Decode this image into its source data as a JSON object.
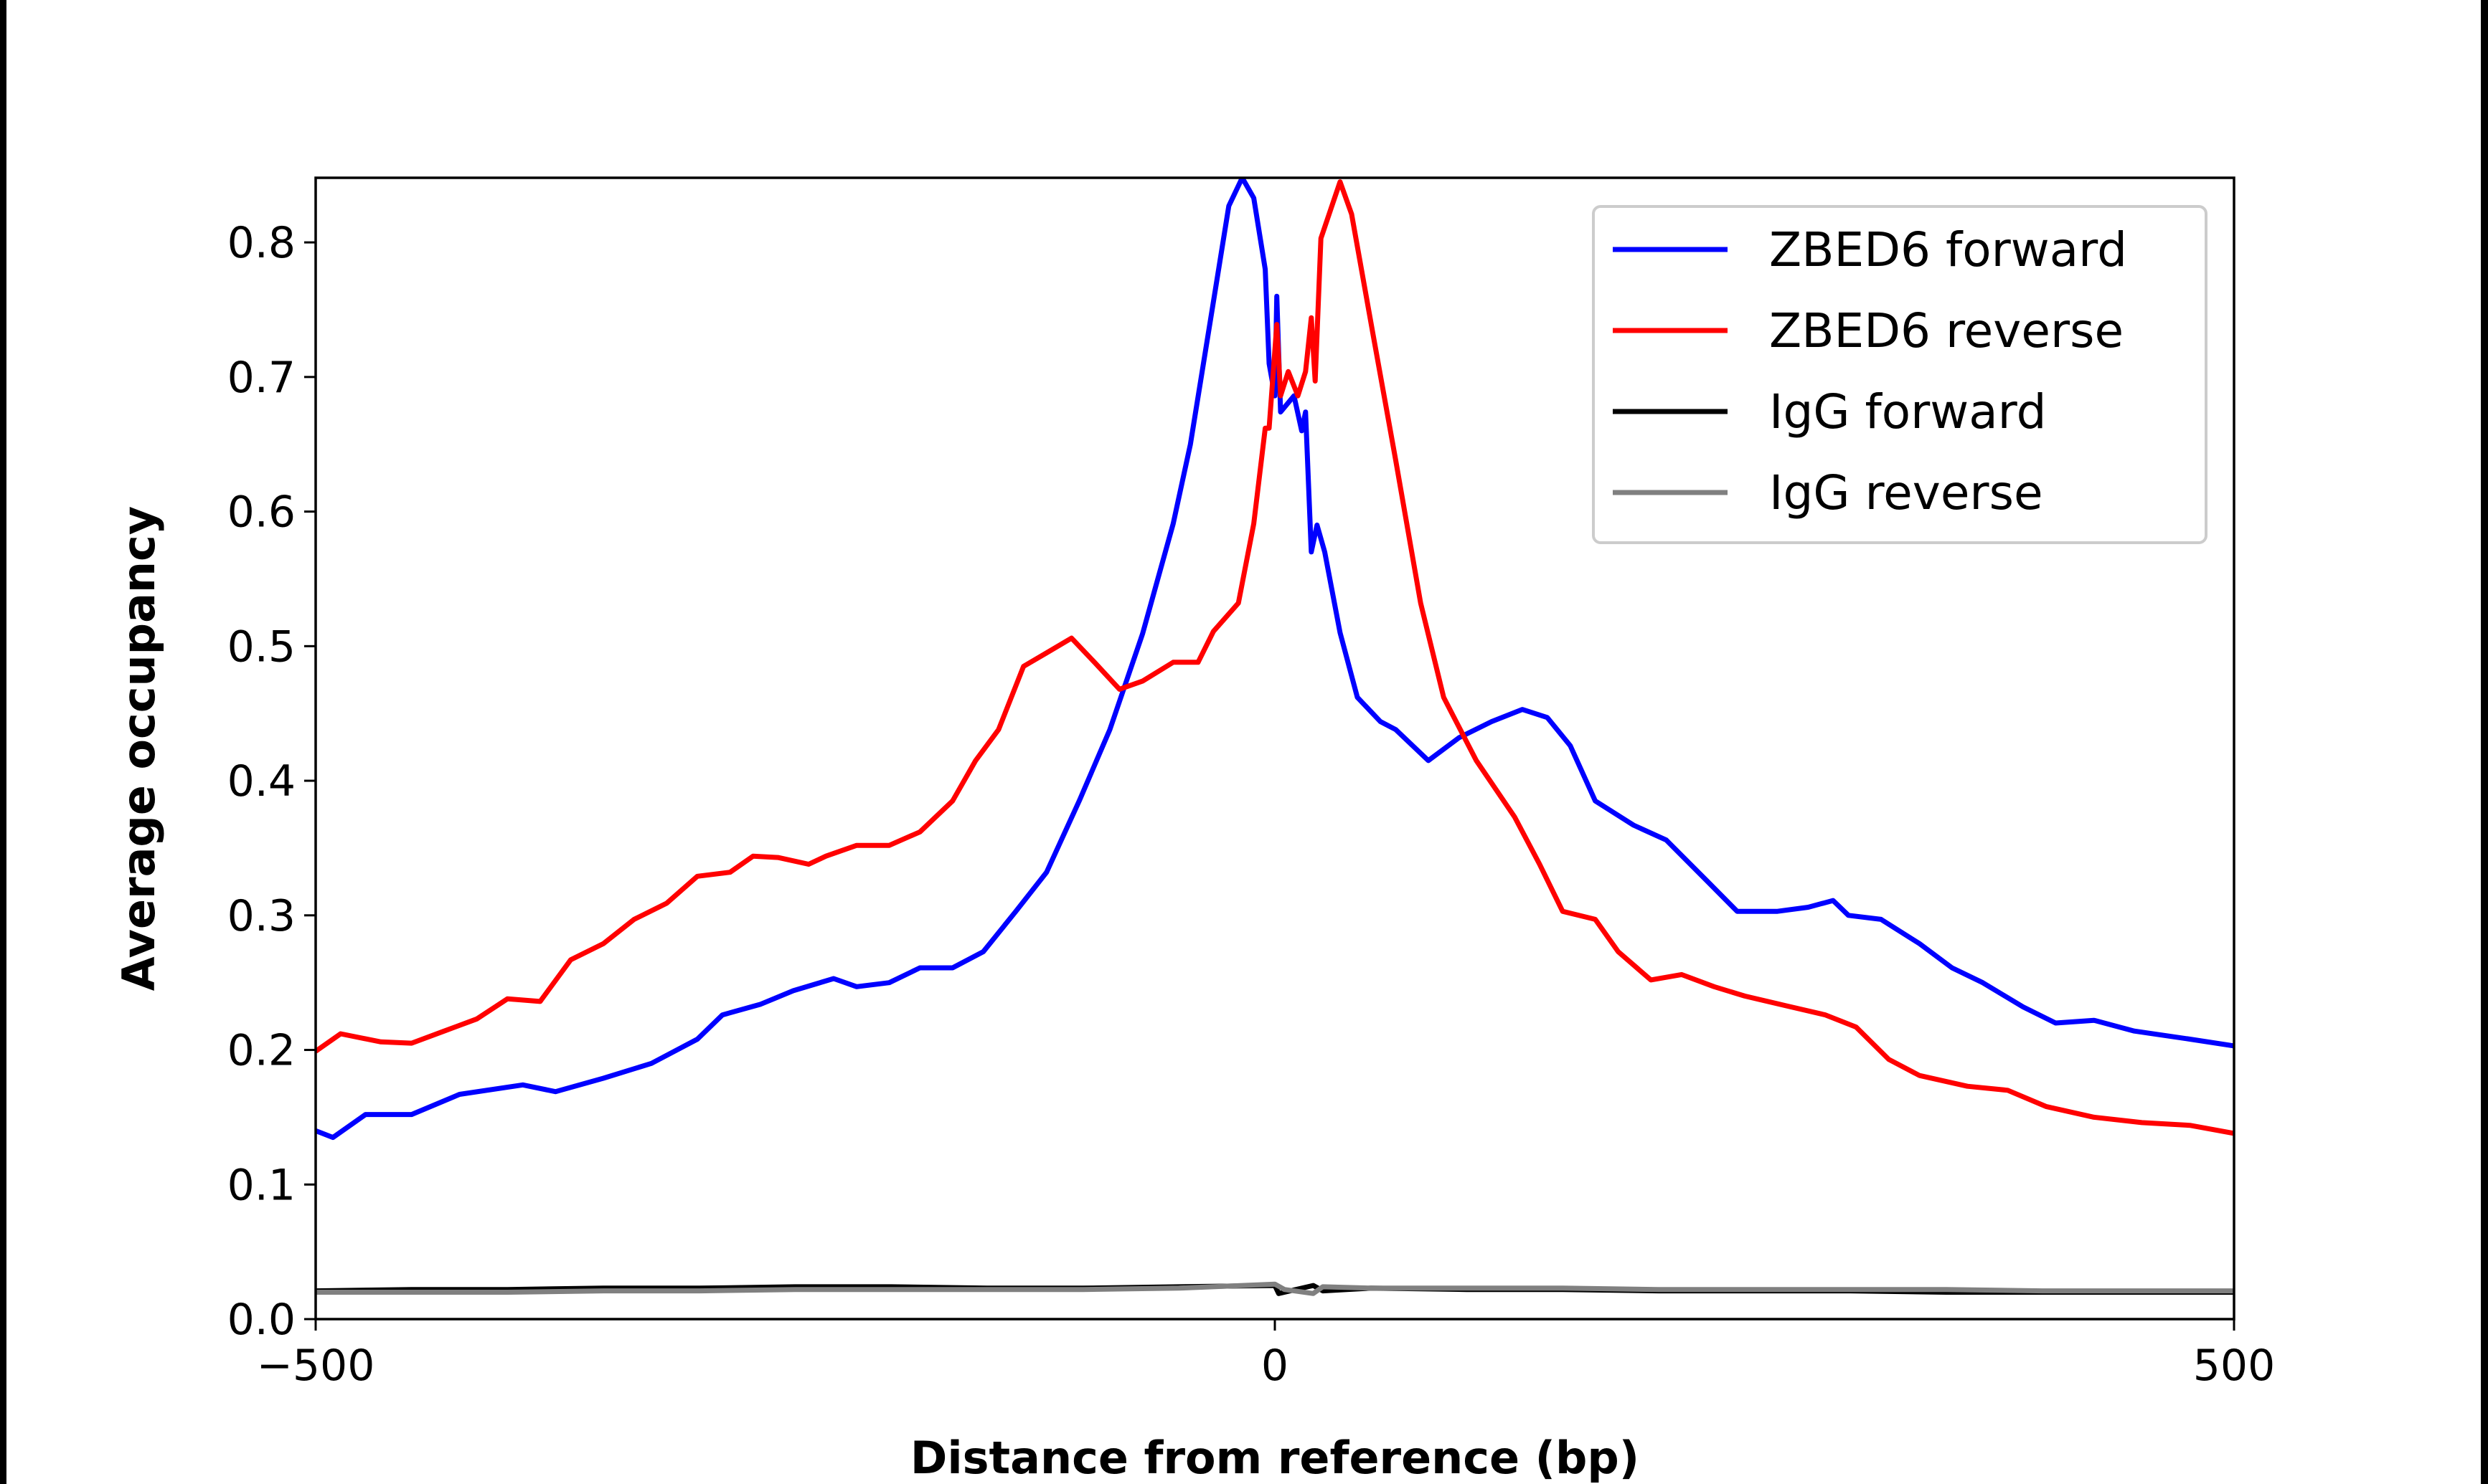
{
  "chart_data": {
    "type": "line",
    "title": "",
    "xlabel": "Distance from reference (bp)",
    "ylabel": "Average occupancy",
    "xlim": [
      -500,
      500
    ],
    "ylim": [
      0,
      0.848
    ],
    "xticks": [
      -500,
      0,
      500
    ],
    "xtick_labels": [
      "−500",
      "0",
      "500"
    ],
    "yticks": [
      0.0,
      0.1,
      0.2,
      0.3,
      0.4,
      0.5,
      0.6,
      0.7,
      0.8
    ],
    "ytick_labels": [
      "0.0",
      "0.1",
      "0.2",
      "0.3",
      "0.4",
      "0.5",
      "0.6",
      "0.7",
      "0.8"
    ],
    "grid": false,
    "legend_position": "top-right",
    "series": [
      {
        "name": "ZBED6 forward",
        "color": "#0000ff",
        "x": [
          -500,
          -491,
          -474,
          -450,
          -425,
          -392,
          -375,
          -350,
          -325,
          -301,
          -288,
          -268,
          -251,
          -230,
          -218,
          -201,
          -185,
          -168,
          -152,
          -135,
          -119,
          -102,
          -86,
          -69,
          -53,
          -44,
          -32,
          -24,
          -17,
          -11,
          -5,
          -3,
          0,
          1,
          3,
          10,
          14,
          16,
          19,
          22,
          26,
          34,
          43,
          55,
          63,
          80,
          96,
          113,
          129,
          142,
          154,
          167,
          187,
          204,
          225,
          241,
          262,
          278,
          291,
          299,
          316,
          336,
          353,
          369,
          390,
          407,
          427,
          448,
          477,
          500
        ],
        "y": [
          0.14,
          0.135,
          0.152,
          0.152,
          0.167,
          0.174,
          0.169,
          0.179,
          0.19,
          0.208,
          0.226,
          0.234,
          0.244,
          0.253,
          0.247,
          0.25,
          0.261,
          0.261,
          0.273,
          0.303,
          0.332,
          0.385,
          0.438,
          0.509,
          0.591,
          0.65,
          0.756,
          0.827,
          0.848,
          0.833,
          0.78,
          0.71,
          0.686,
          0.76,
          0.674,
          0.686,
          0.66,
          0.674,
          0.57,
          0.59,
          0.57,
          0.51,
          0.462,
          0.444,
          0.438,
          0.415,
          0.432,
          0.444,
          0.453,
          0.447,
          0.426,
          0.385,
          0.367,
          0.356,
          0.326,
          0.303,
          0.303,
          0.306,
          0.311,
          0.3,
          0.297,
          0.279,
          0.261,
          0.25,
          0.232,
          0.22,
          0.222,
          0.214,
          0.208,
          0.203
        ]
      },
      {
        "name": "ZBED6 reverse",
        "color": "#ff0000",
        "x": [
          -500,
          -487,
          -466,
          -450,
          -433,
          -416,
          -400,
          -383,
          -367,
          -350,
          -334,
          -317,
          -301,
          -284,
          -272,
          -259,
          -243,
          -234,
          -218,
          -201,
          -185,
          -168,
          -156,
          -144,
          -131,
          -119,
          -106,
          -94,
          -81,
          -69,
          -53,
          -40,
          -32,
          -19,
          -11,
          -5,
          -3,
          1,
          3,
          7,
          12,
          16,
          19,
          21,
          24,
          34,
          40,
          51,
          63,
          76,
          88,
          105,
          125,
          138,
          150,
          167,
          179,
          196,
          212,
          229,
          245,
          266,
          287,
          303,
          320,
          336,
          361,
          382,
          402,
          427,
          452,
          477,
          500
        ],
        "y": [
          0.199,
          0.212,
          0.206,
          0.205,
          0.214,
          0.223,
          0.238,
          0.236,
          0.267,
          0.279,
          0.297,
          0.309,
          0.329,
          0.332,
          0.344,
          0.343,
          0.338,
          0.344,
          0.352,
          0.352,
          0.362,
          0.385,
          0.415,
          0.438,
          0.485,
          0.495,
          0.506,
          0.488,
          0.468,
          0.474,
          0.488,
          0.488,
          0.511,
          0.532,
          0.591,
          0.662,
          0.662,
          0.739,
          0.686,
          0.704,
          0.686,
          0.704,
          0.744,
          0.697,
          0.803,
          0.845,
          0.821,
          0.733,
          0.638,
          0.532,
          0.462,
          0.415,
          0.373,
          0.338,
          0.303,
          0.297,
          0.273,
          0.252,
          0.256,
          0.247,
          0.24,
          0.233,
          0.226,
          0.217,
          0.193,
          0.181,
          0.173,
          0.17,
          0.158,
          0.15,
          0.146,
          0.144,
          0.138
        ]
      },
      {
        "name": "IgG forward",
        "color": "#000000",
        "x": [
          -500,
          -450,
          -400,
          -350,
          -300,
          -250,
          -200,
          -150,
          -100,
          -50,
          0,
          2,
          20,
          25,
          50,
          100,
          150,
          200,
          250,
          300,
          350,
          400,
          450,
          500
        ],
        "y": [
          0.021,
          0.022,
          0.022,
          0.023,
          0.023,
          0.024,
          0.024,
          0.023,
          0.023,
          0.024,
          0.025,
          0.019,
          0.025,
          0.021,
          0.023,
          0.022,
          0.022,
          0.021,
          0.021,
          0.021,
          0.02,
          0.02,
          0.02,
          0.02
        ]
      },
      {
        "name": "IgG reverse",
        "color": "#808080",
        "x": [
          -500,
          -450,
          -400,
          -350,
          -300,
          -250,
          -200,
          -150,
          -100,
          -50,
          0,
          5,
          20,
          25,
          50,
          100,
          150,
          200,
          250,
          300,
          350,
          400,
          450,
          500
        ],
        "y": [
          0.02,
          0.02,
          0.02,
          0.021,
          0.021,
          0.022,
          0.022,
          0.022,
          0.022,
          0.023,
          0.026,
          0.022,
          0.019,
          0.024,
          0.023,
          0.023,
          0.023,
          0.022,
          0.022,
          0.022,
          0.022,
          0.021,
          0.021,
          0.021
        ]
      }
    ]
  }
}
